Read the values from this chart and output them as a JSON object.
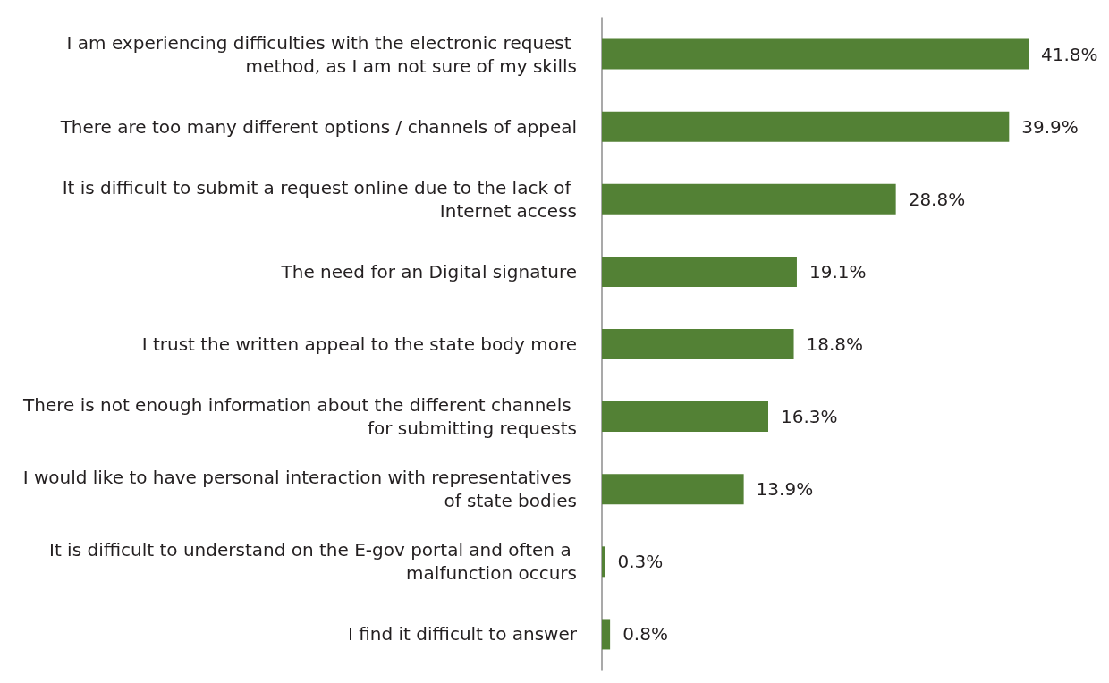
{
  "chart_data": {
    "type": "bar",
    "orientation": "horizontal",
    "categories": [
      "I am experiencing difficulties with the electronic request method, as I am not sure of my skills",
      "There are too many different options / channels of appeal",
      "It is difficult to submit a request online due to the lack of Internet access",
      "The need for an Digital signature",
      "I trust the written appeal to the state body more",
      "There is not enough information about the different channels for submitting requests",
      "I would like to have personal interaction with representatives of state bodies",
      "It is difficult to understand on the E-gov portal and often a malfunction occurs",
      "I find it difficult to answer"
    ],
    "values": [
      41.8,
      39.9,
      28.8,
      19.1,
      18.8,
      16.3,
      13.9,
      0.3,
      0.8
    ],
    "value_labels": [
      "41.8%",
      "39.9%",
      "28.8%",
      "19.1%",
      "18.8%",
      "16.3%",
      "13.9%",
      "0.3%",
      "0.8%"
    ],
    "color": "#538135"
  }
}
